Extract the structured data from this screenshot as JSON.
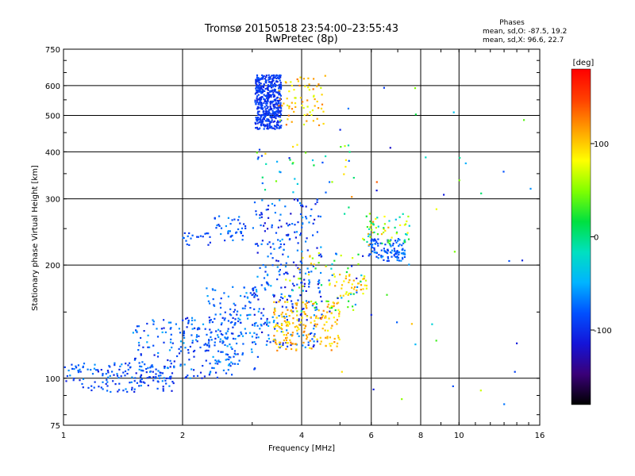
{
  "chart_data": {
    "type": "scatter",
    "title": "Tromsø 20150518 23:54:00–23:55:43",
    "subtitle": "RwPretec (8p)",
    "xlabel": "Frequency [MHz]",
    "ylabel": "Stationary phase Virtual Height [km]",
    "x_scale": "log",
    "y_scale": "log",
    "xlim": [
      1,
      16
    ],
    "ylim": [
      75,
      750
    ],
    "grid": true,
    "x_ticks": [
      "1",
      "2",
      "4",
      "6",
      "8",
      "10",
      "16"
    ],
    "y_ticks": [
      "75",
      "100",
      "200",
      "300",
      "400",
      "500",
      "600",
      "750"
    ],
    "x_grid_values": [
      2,
      4,
      6,
      8,
      10
    ],
    "y_grid_values": [
      100,
      200,
      300,
      400,
      500,
      600
    ],
    "stats": {
      "header": "Phases",
      "line1": "mean, sd,O: -87.5, 19.2",
      "line2": "mean, sd,X:  96.6, 22.7"
    },
    "colorbar": {
      "label": "[deg]",
      "range": [
        -180,
        180
      ],
      "ticks": [
        "100",
        "0",
        "-100"
      ],
      "tick_values": [
        100,
        0,
        -100
      ],
      "colormap": [
        "#000000",
        "#3a0078",
        "#1414d8",
        "#0050ff",
        "#00b4ff",
        "#00e0c0",
        "#00e040",
        "#80ff00",
        "#ffff00",
        "#ffa000",
        "#ff4000",
        "#ff0000"
      ]
    },
    "series": [
      {
        "clusters": [
          {
            "x": [
              3.05,
              3.55
            ],
            "y": [
              460,
              640
            ],
            "phase": [
              -110,
              -80
            ],
            "n": 480
          },
          {
            "x": [
              3.5,
              4.6
            ],
            "y": [
              470,
              640
            ],
            "phase": [
              60,
              130
            ],
            "n": 70
          },
          {
            "x": [
              1.0,
              1.9
            ],
            "y": [
              92,
              110
            ],
            "phase": [
              -110,
              -60
            ],
            "n": 150
          },
          {
            "x": [
              1.5,
              2.8
            ],
            "y": [
              100,
              145
            ],
            "phase": [
              -110,
              -50
            ],
            "n": 220
          },
          {
            "x": [
              2.3,
              3.1
            ],
            "y": [
              105,
              175
            ],
            "phase": [
              -100,
              -50
            ],
            "n": 120
          },
          {
            "x": [
              2.0,
              2.35
            ],
            "y": [
              225,
              245
            ],
            "phase": [
              -100,
              -70
            ],
            "n": 20
          },
          {
            "x": [
              2.4,
              2.9
            ],
            "y": [
              230,
              270
            ],
            "phase": [
              -100,
              -60
            ],
            "n": 40
          },
          {
            "x": [
              3.0,
              4.5
            ],
            "y": [
              120,
              300
            ],
            "phase": [
              -120,
              -50
            ],
            "n": 300
          },
          {
            "x": [
              3.4,
              5.0
            ],
            "y": [
              118,
              160
            ],
            "phase": [
              80,
              130
            ],
            "n": 180
          },
          {
            "x": [
              4.8,
              5.9
            ],
            "y": [
              165,
              190
            ],
            "phase": [
              70,
              120
            ],
            "n": 40
          },
          {
            "x": [
              3.6,
              5.7
            ],
            "y": [
              150,
              220
            ],
            "phase": [
              -130,
              110
            ],
            "n": 80
          },
          {
            "x": [
              5.9,
              7.3
            ],
            "y": [
              205,
              235
            ],
            "phase": [
              -100,
              -60
            ],
            "n": 110
          },
          {
            "x": [
              5.7,
              7.5
            ],
            "y": [
              225,
              275
            ],
            "phase": [
              -40,
              120
            ],
            "n": 60
          },
          {
            "x": [
              3.0,
              5.5
            ],
            "y": [
              300,
              420
            ],
            "phase": [
              -120,
              100
            ],
            "n": 40
          },
          {
            "x": [
              5.0,
              16.0
            ],
            "y": [
              80,
              620
            ],
            "phase": [
              -120,
              140
            ],
            "n": 45
          }
        ]
      }
    ]
  }
}
